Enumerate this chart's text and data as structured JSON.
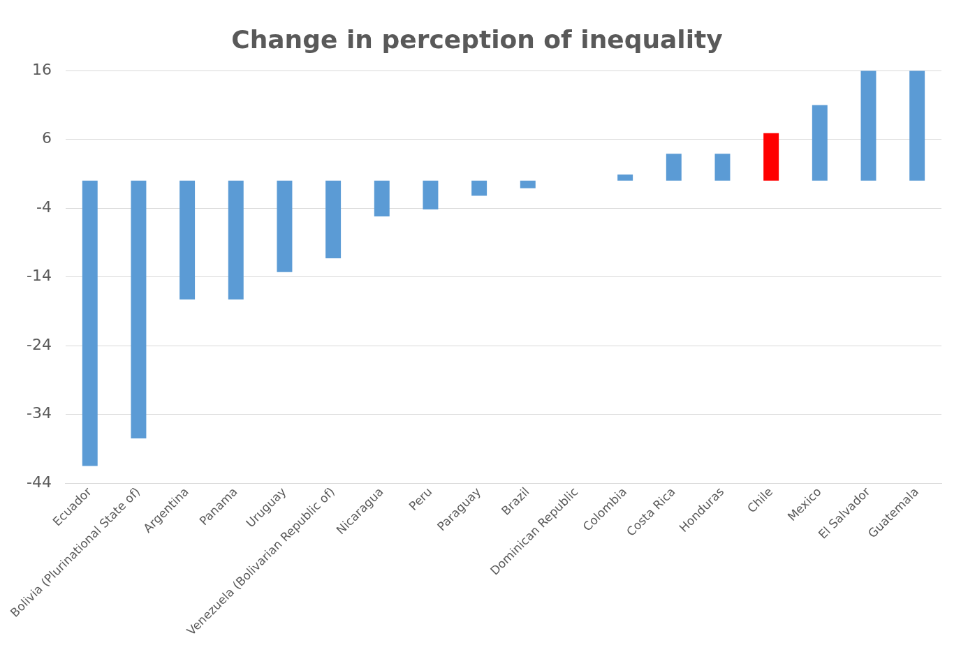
{
  "chart_data": {
    "type": "bar",
    "title": "Change in perception of inequality",
    "categories": [
      "Ecuador",
      "Bolivia (Plurinational State of)",
      "Argentina",
      "Panama",
      "Uruguay",
      "Venezuela (Bolivarian Republic of)",
      "Nicaragua",
      "Peru",
      "Paraguay",
      "Brazil",
      "Dominican Republic",
      "Colombia",
      "Costa Rica",
      "Honduras",
      "Chile",
      "Mexico",
      "El Salvador",
      "Guatemala"
    ],
    "values": [
      -41.5,
      -37.5,
      -17.3,
      -17.3,
      -13.3,
      -11.3,
      -5.2,
      -4.2,
      -2.2,
      -1.1,
      0,
      0.9,
      3.9,
      3.9,
      6.9,
      11,
      16,
      16
    ],
    "colors": [
      "#5b9bd5",
      "#5b9bd5",
      "#5b9bd5",
      "#5b9bd5",
      "#5b9bd5",
      "#5b9bd5",
      "#5b9bd5",
      "#5b9bd5",
      "#5b9bd5",
      "#5b9bd5",
      "#5b9bd5",
      "#5b9bd5",
      "#5b9bd5",
      "#5b9bd5",
      "#ff0000",
      "#5b9bd5",
      "#5b9bd5",
      "#5b9bd5"
    ],
    "ylim": [
      -44,
      16
    ],
    "yticks": [
      16,
      6,
      -4,
      -14,
      -24,
      -34,
      -44
    ],
    "grid": "y",
    "legend": false
  }
}
